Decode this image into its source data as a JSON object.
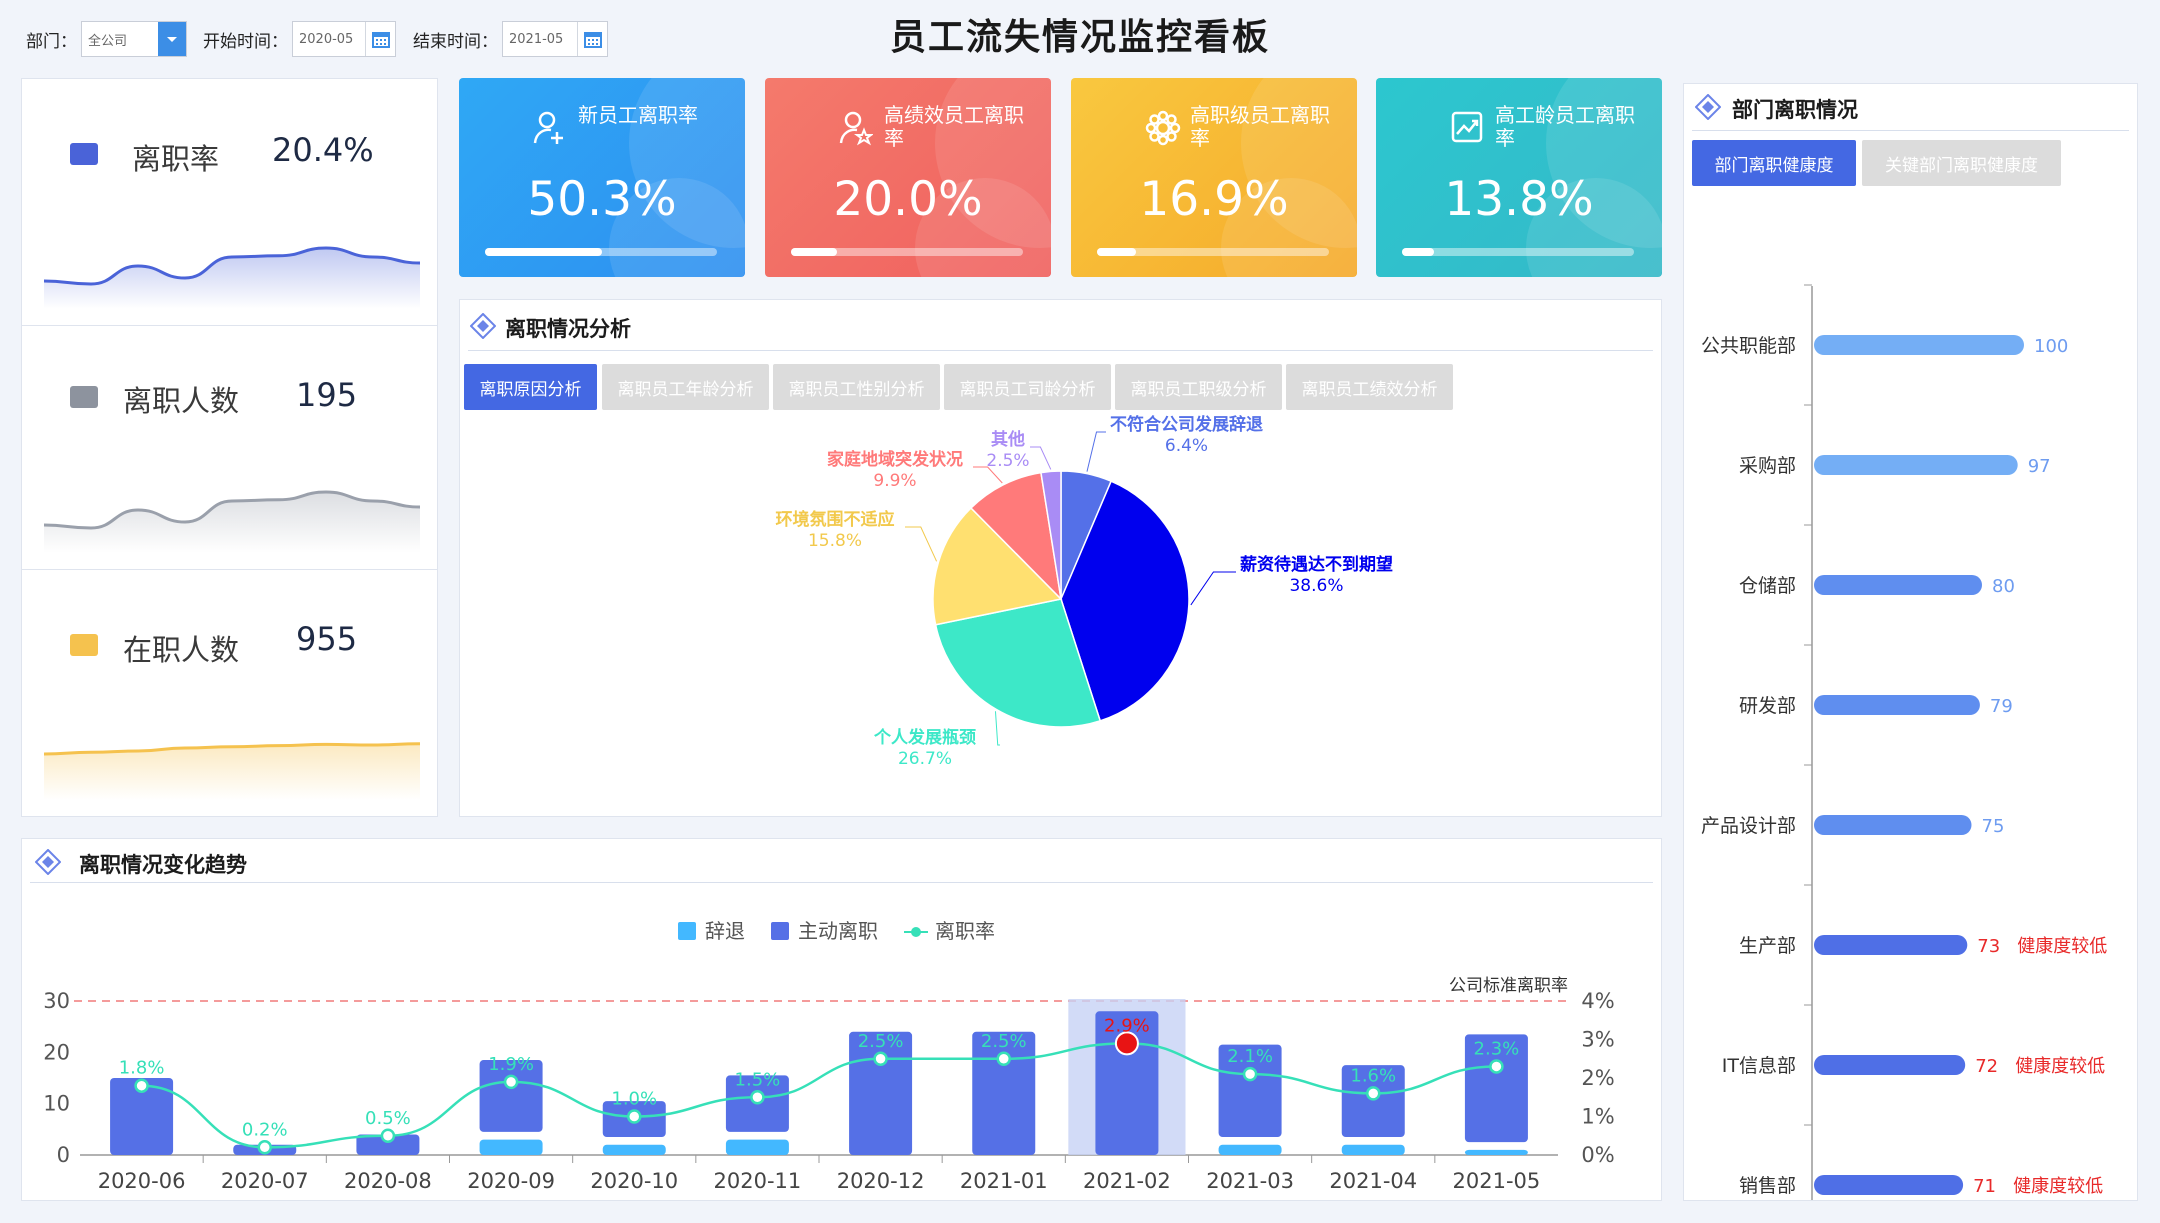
{
  "page": {
    "title": "员工流失情况监控看板"
  },
  "filters": {
    "dept_label": "部门：",
    "dept_value": "全公司",
    "start_label": "开始时间：",
    "start_value": "2020-05",
    "end_label": "结束时间：",
    "end_value": "2021-05"
  },
  "stats": [
    {
      "label": "离职率",
      "value": "20.4%",
      "color": "#4a63d8",
      "series": [
        0.3,
        0.25,
        0.55,
        0.35,
        0.7,
        0.72,
        0.85,
        0.7,
        0.6
      ]
    },
    {
      "label": "离职人数",
      "value": "195",
      "color": "#9aa0ab",
      "series": [
        0.3,
        0.25,
        0.55,
        0.35,
        0.7,
        0.72,
        0.85,
        0.7,
        0.6
      ]
    },
    {
      "label": "在职人数",
      "value": "955",
      "color": "#f5c24e",
      "series": [
        0.6,
        0.63,
        0.65,
        0.7,
        0.72,
        0.74,
        0.76,
        0.75,
        0.77
      ]
    }
  ],
  "kpis": [
    {
      "label": "新员工离职率",
      "value": "50.3%",
      "progress": 0.503,
      "color1": "#2fa8f5",
      "color2": "#2e8ff0",
      "icon": "user-plus-icon"
    },
    {
      "label": "高绩效员工离职率",
      "value": "20.0%",
      "progress": 0.2,
      "color1": "#f47a6c",
      "color2": "#f0605e",
      "icon": "user-star-icon"
    },
    {
      "label": "高职级员工离职率",
      "value": "16.9%",
      "progress": 0.169,
      "color1": "#f9c83f",
      "color2": "#f5a92a",
      "icon": "gear-icon"
    },
    {
      "label": "高工龄员工离职率",
      "value": "13.8%",
      "progress": 0.138,
      "color1": "#2cc7cf",
      "color2": "#35b8c8",
      "icon": "trend-chart-icon"
    }
  ],
  "analysis": {
    "title": "离职情况分析",
    "tabs": [
      "离职原因分析",
      "离职员工年龄分析",
      "离职员工性别分析",
      "离职员工司龄分析",
      "离职员工职级分析",
      "离职员工绩效分析"
    ]
  },
  "trend": {
    "title": "离职情况变化趋势"
  },
  "dept": {
    "title": "部门离职情况",
    "tabs": [
      "部门离职健康度",
      "关键部门离职健康度"
    ]
  },
  "chart_data": [
    {
      "type": "pie",
      "slices": [
        {
          "name": "不符合公司发展辞退",
          "value": 6.4,
          "label": "6.4%",
          "color": "#5470e8"
        },
        {
          "name": "薪资待遇达不到期望",
          "value": 38.6,
          "label": "38.6%",
          "color": "#0000ee"
        },
        {
          "name": "个人发展瓶颈",
          "value": 26.7,
          "label": "26.7%",
          "color": "#3de8c8"
        },
        {
          "name": "环境氛围不适应",
          "value": 15.8,
          "label": "15.8%",
          "color": "#ffe070"
        },
        {
          "name": "家庭地域突发状况",
          "value": 9.9,
          "label": "9.9%",
          "color": "#ff7a7a"
        },
        {
          "name": "其他",
          "value": 2.5,
          "label": "2.5%",
          "color": "#a98cf5"
        }
      ]
    },
    {
      "type": "bar",
      "categories": [
        "2020-06",
        "2020-07",
        "2020-08",
        "2020-09",
        "2020-10",
        "2020-11",
        "2020-12",
        "2021-01",
        "2021-02",
        "2021-03",
        "2021-04",
        "2021-05"
      ],
      "series": [
        {
          "name": "辞退",
          "values": [
            0,
            0,
            0,
            3,
            2,
            3,
            0,
            0,
            0,
            2,
            2,
            1
          ],
          "color": "#43b8ff"
        },
        {
          "name": "主动离职",
          "values": [
            15,
            2,
            4,
            14,
            7,
            11,
            24,
            24,
            28,
            18,
            14,
            21
          ],
          "color": "#5570e6"
        },
        {
          "name": "离职率",
          "values": [
            1.8,
            0.2,
            0.5,
            1.9,
            1.0,
            1.5,
            2.5,
            2.5,
            2.9,
            2.1,
            1.6,
            2.3
          ],
          "labels": [
            "1.8%",
            "0.2%",
            "0.5%",
            "1.9%",
            "1.0%",
            "1.5%",
            "2.5%",
            "2.5%",
            "2.9%",
            "2.1%",
            "1.6%",
            "2.3%"
          ],
          "color": "#36e0b8"
        }
      ],
      "y_left": {
        "ticks": [
          "0",
          "10",
          "20",
          "30"
        ],
        "max": 30
      },
      "y_right": {
        "ticks": [
          "0%",
          "1%",
          "2%",
          "3%",
          "4%"
        ],
        "max": 4
      },
      "reference_line": {
        "label": "公司标准离职率",
        "value": 30
      },
      "highlight_index": 8
    },
    {
      "type": "bar",
      "orientation": "horizontal",
      "categories": [
        "公共职能部",
        "采购部",
        "仓储部",
        "研发部",
        "产品设计部",
        "生产部",
        "IT信息部",
        "销售部"
      ],
      "values": [
        100,
        97,
        80,
        79,
        75,
        73,
        72,
        71
      ],
      "notes": [
        "",
        "",
        "",
        "",
        "",
        "健康度较低",
        "健康度较低",
        "健康度较低"
      ]
    }
  ]
}
